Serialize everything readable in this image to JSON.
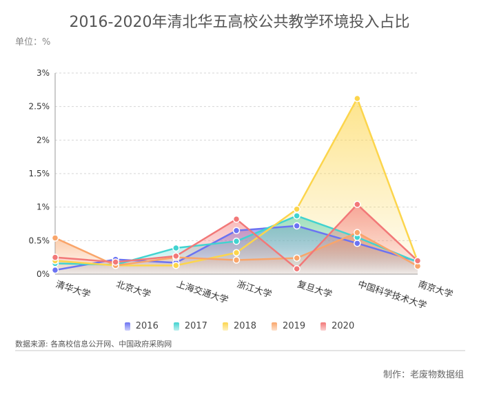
{
  "header": {
    "title": "2016-2020年清北华五高校公共教学环境投入占比",
    "unit": "单位：%"
  },
  "footer": {
    "source": "数据来源: 各高校信息公开网、中国政府采购网",
    "credit": "制作：老废物数据组"
  },
  "chart_data": {
    "type": "area",
    "title": "2016-2020年清北华五高校公共教学环境投入占比",
    "ylabel": "单位：%",
    "categories": [
      "清华大学",
      "北京大学",
      "上海交通大学",
      "浙江大学",
      "复旦大学",
      "中国科学技术大学",
      "南京大学"
    ],
    "yticks": [
      "0%",
      "0.5%",
      "1%",
      "1.5%",
      "2%",
      "2.5%",
      "3%"
    ],
    "ylim": [
      0,
      3
    ],
    "grid": true,
    "legend_position": "bottom",
    "series": [
      {
        "name": "2016",
        "color": "#6b73f2",
        "values": [
          0.06,
          0.22,
          0.17,
          0.65,
          0.72,
          0.46,
          0.19
        ]
      },
      {
        "name": "2017",
        "color": "#41d3d0",
        "values": [
          0.16,
          0.14,
          0.39,
          0.49,
          0.87,
          0.55,
          0.18
        ]
      },
      {
        "name": "2018",
        "color": "#fcd54c",
        "values": [
          0.2,
          0.13,
          0.13,
          0.32,
          0.97,
          2.62,
          0.19
        ]
      },
      {
        "name": "2019",
        "color": "#f9a56a",
        "values": [
          0.54,
          0.13,
          0.25,
          0.21,
          0.24,
          0.62,
          0.12
        ]
      },
      {
        "name": "2020",
        "color": "#f27878",
        "values": [
          0.25,
          0.18,
          0.27,
          0.82,
          0.08,
          1.04,
          0.2
        ]
      }
    ]
  }
}
